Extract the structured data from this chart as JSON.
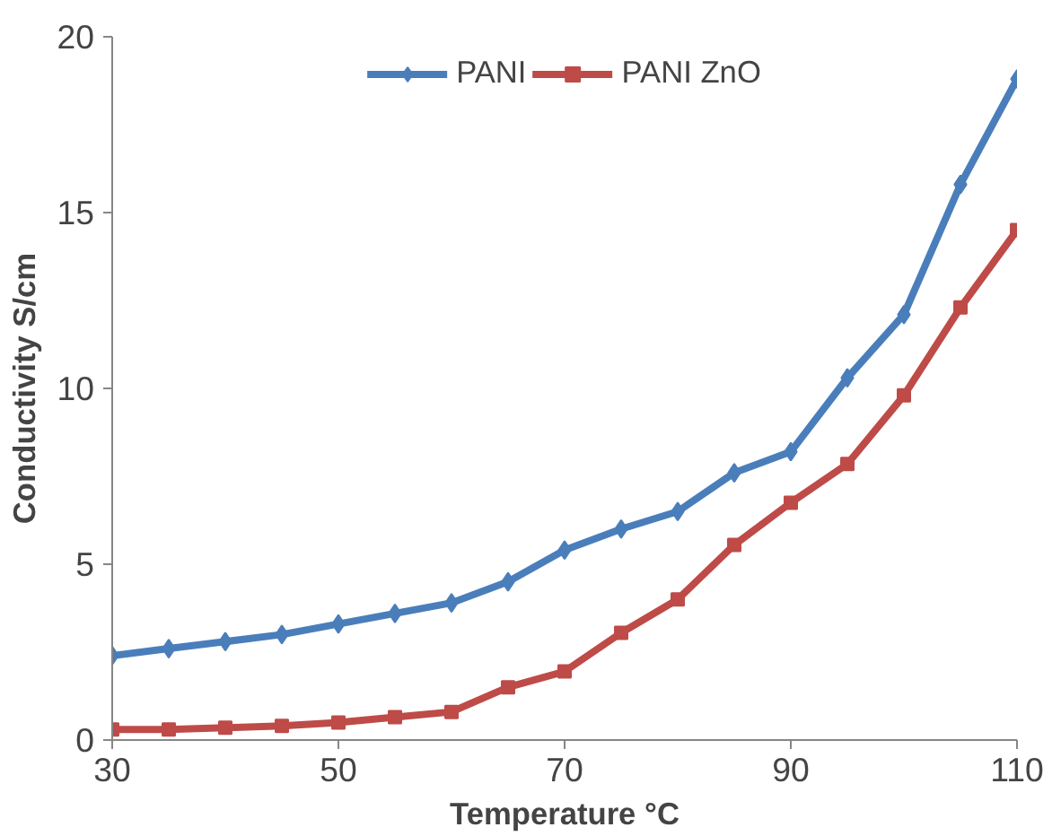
{
  "chart_data": {
    "type": "line",
    "xlabel": "Temperature °C",
    "ylabel": "Conductivity S/cm",
    "x": [
      30,
      35,
      40,
      45,
      50,
      55,
      60,
      65,
      70,
      75,
      80,
      85,
      90,
      95,
      100,
      105,
      110
    ],
    "series": [
      {
        "name": "PANI",
        "color": "#4a7ebb",
        "marker": "diamond",
        "values": [
          2.4,
          2.6,
          2.8,
          3.0,
          3.3,
          3.6,
          3.9,
          4.5,
          5.4,
          6.0,
          6.5,
          7.6,
          8.2,
          10.3,
          12.1,
          15.8,
          18.8
        ]
      },
      {
        "name": "PANI ZnO",
        "color": "#be4b48",
        "marker": "square",
        "values": [
          0.3,
          0.3,
          0.35,
          0.4,
          0.5,
          0.65,
          0.8,
          1.5,
          1.95,
          3.05,
          4.0,
          5.55,
          6.75,
          7.85,
          9.8,
          12.3,
          14.5
        ]
      }
    ],
    "xlim": [
      30,
      110
    ],
    "ylim": [
      0,
      20
    ],
    "xticks": [
      30,
      50,
      70,
      90,
      110
    ],
    "yticks": [
      0,
      5,
      10,
      15,
      20
    ],
    "grid": false,
    "legend": "top",
    "line_style": "solid"
  }
}
